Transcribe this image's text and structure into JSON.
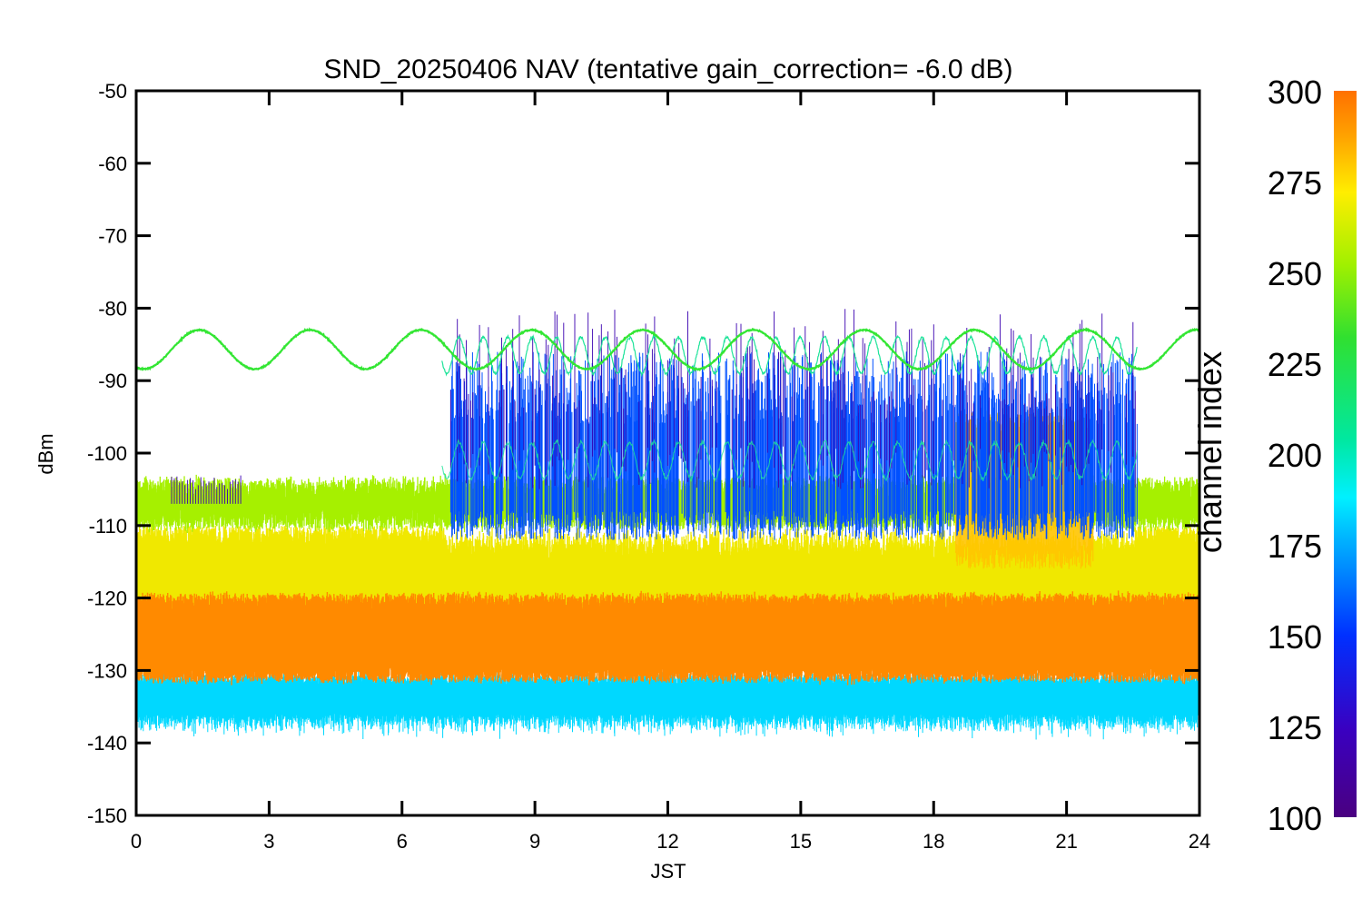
{
  "chart_data": {
    "type": "line",
    "title": "SND_20250406 NAV (tentative gain_correction= -6.0 dB)",
    "xlabel": "JST",
    "ylabel": "dBm",
    "xlim": [
      0,
      24
    ],
    "ylim": [
      -150,
      -50
    ],
    "xticks": [
      "0",
      "3",
      "6",
      "9",
      "12",
      "15",
      "18",
      "21",
      "24"
    ],
    "yticks": [
      "-50",
      "-60",
      "-70",
      "-80",
      "-90",
      "-100",
      "-110",
      "-120",
      "-130",
      "-140",
      "-150"
    ],
    "colorbar": {
      "label": "channel index",
      "range": [
        100,
        300
      ],
      "ticks": [
        "300",
        "275",
        "250",
        "225",
        "200",
        "175",
        "150",
        "125",
        "100"
      ],
      "colormap": "rainbow (purple → blue → cyan → green → yellow → orange)"
    },
    "grid": false,
    "series": [
      {
        "channel": 290,
        "color": "#ff8a00",
        "band": "core",
        "center_dbm": -125.5,
        "spread_db": 6,
        "peak_band_dbm": [
          -120,
          -131
        ]
      },
      {
        "channel": 270,
        "color": "#f0e800",
        "band": "upper",
        "range_dbm": [
          -110,
          -122
        ]
      },
      {
        "channel": 255,
        "color": "#a6f000",
        "band": "upper",
        "center_dbm": -107,
        "spread_db": 3
      },
      {
        "channel": 240,
        "color": "#33e633",
        "band": "sinusoid",
        "center_dbm": -85.7,
        "amplitude_db": 2.7,
        "period_h": 2.5,
        "x_range": [
          0,
          24
        ]
      },
      {
        "channel": 210,
        "color": "#1fe39a",
        "band": "sinusoid",
        "center_dbm": -86.5,
        "amplitude_db": 2.5,
        "period_h": 0.55,
        "x_range": [
          6.9,
          22.6
        ]
      },
      {
        "channel": 175,
        "color": "#00d8ff",
        "band": "lower",
        "range_dbm": [
          -131,
          -136
        ]
      },
      {
        "channel": 150,
        "color": "#0050ff",
        "band": "bursts",
        "range_dbm": [
          -86,
          -112
        ],
        "x_range": [
          7.1,
          22.6
        ]
      },
      {
        "channel": 120,
        "color": "#3a00b0",
        "band": "bursts",
        "range_dbm": [
          -80,
          -105
        ],
        "x_range": [
          7.1,
          22.6
        ]
      },
      {
        "channel": 265,
        "color": "#ffc400",
        "band": "bursts",
        "range_dbm": [
          -96,
          -112
        ],
        "x_range": [
          18.5,
          21.6
        ]
      }
    ]
  }
}
